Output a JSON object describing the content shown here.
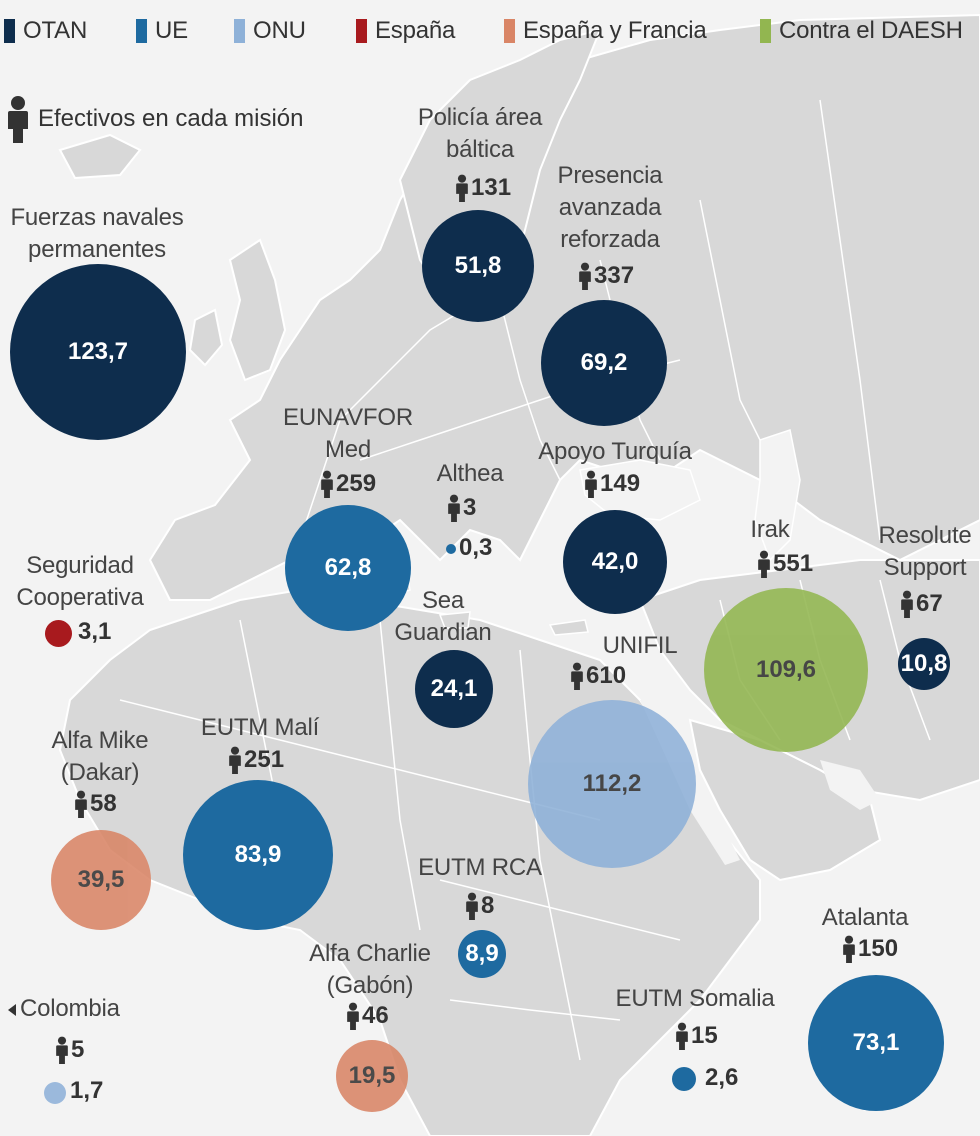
{
  "legend": {
    "items": [
      {
        "label": "OTAN",
        "color": "#0e2d4d"
      },
      {
        "label": "UE",
        "color": "#1e6aa0"
      },
      {
        "label": "ONU",
        "color": "#8eb1d8"
      },
      {
        "label": "España",
        "color": "#a81a1e"
      },
      {
        "label": "España y Francia",
        "color": "#d98566"
      },
      {
        "label": "Contra el DAESH",
        "color": "#92b650"
      }
    ],
    "personnel_label": "Efectivos en cada misión"
  },
  "missions": [
    {
      "name": "Fuerzas navales\npermanentes",
      "personnel": "",
      "value": "123,7",
      "org": "OTAN"
    },
    {
      "name": "Policía área\nbáltica",
      "personnel": "131",
      "value": "51,8",
      "org": "OTAN"
    },
    {
      "name": "Presencia\navanzada\nreforzada",
      "personnel": "337",
      "value": "69,2",
      "org": "OTAN"
    },
    {
      "name": "EUNAVFOR\nMed",
      "personnel": "259",
      "value": "62,8",
      "org": "UE"
    },
    {
      "name": "Althea",
      "personnel": "3",
      "value": "0,3",
      "org": "UE"
    },
    {
      "name": "Apoyo Turquía",
      "personnel": "149",
      "value": "42,0",
      "org": "OTAN"
    },
    {
      "name": "Seguridad\nCooperativa",
      "personnel": "",
      "value": "3,1",
      "org": "España"
    },
    {
      "name": "Sea\nGuardian",
      "personnel": "",
      "value": "24,1",
      "org": "OTAN"
    },
    {
      "name": "Irak",
      "personnel": "551",
      "value": "109,6",
      "org": "Contra el DAESH"
    },
    {
      "name": "Resolute\nSupport",
      "personnel": "67",
      "value": "10,8",
      "org": "OTAN"
    },
    {
      "name": "UNIFIL",
      "personnel": "610",
      "value": "112,2",
      "org": "ONU"
    },
    {
      "name": "Alfa Mike\n(Dakar)",
      "personnel": "58",
      "value": "39,5",
      "org": "España y Francia"
    },
    {
      "name": "EUTM Malí",
      "personnel": "251",
      "value": "83,9",
      "org": "UE"
    },
    {
      "name": "EUTM RCA",
      "personnel": "8",
      "value": "8,9",
      "org": "UE"
    },
    {
      "name": "Atalanta",
      "personnel": "150",
      "value": "73,1",
      "org": "UE"
    },
    {
      "name": "Alfa Charlie\n(Gabón)",
      "personnel": "46",
      "value": "19,5",
      "org": "España y Francia"
    },
    {
      "name": "EUTM Somalia",
      "personnel": "15",
      "value": "2,6",
      "org": "UE"
    },
    {
      "name": "Colombia",
      "personnel": "5",
      "value": "1,7",
      "org": "ONU"
    }
  ]
}
